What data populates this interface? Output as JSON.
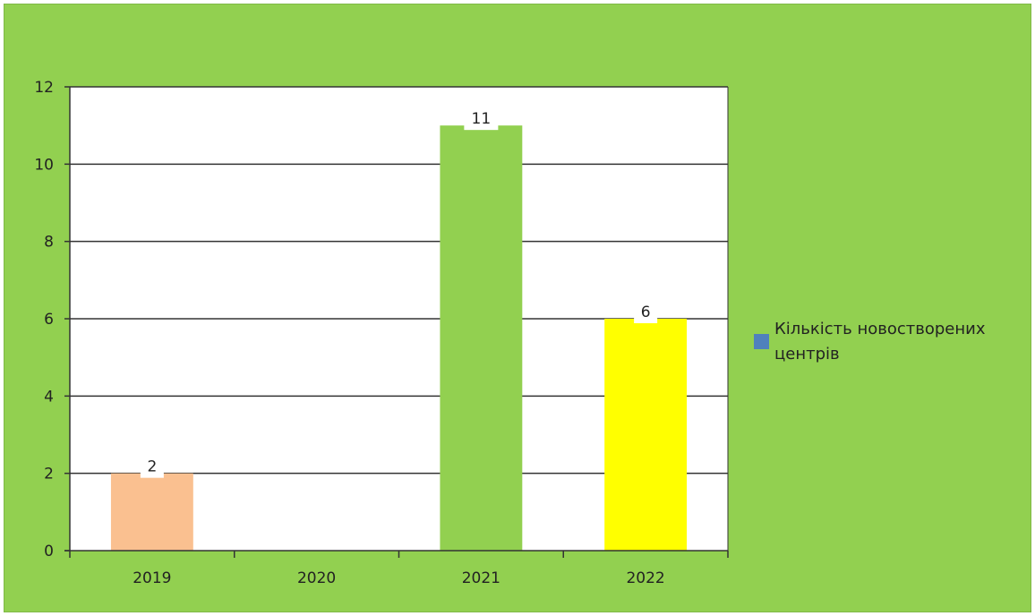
{
  "chart_data": {
    "type": "bar",
    "categories": [
      "2019",
      "2020",
      "2021",
      "2022"
    ],
    "series": [
      {
        "name": "Кількість новостворених центрів",
        "values": [
          2,
          0,
          11,
          6
        ]
      }
    ],
    "bar_colors": [
      "#fac090",
      "#ffffff",
      "#92d050",
      "#ffff00"
    ],
    "legend_color": "#4f81bd",
    "ylim": [
      0,
      12
    ],
    "yticks": [
      "0",
      "2",
      "4",
      "6",
      "8",
      "10",
      "12"
    ],
    "data_labels": [
      "2",
      "",
      "11",
      "6"
    ],
    "grid": true,
    "legend_position": "right",
    "background": "#92d050",
    "plot_background": "#ffffff"
  }
}
